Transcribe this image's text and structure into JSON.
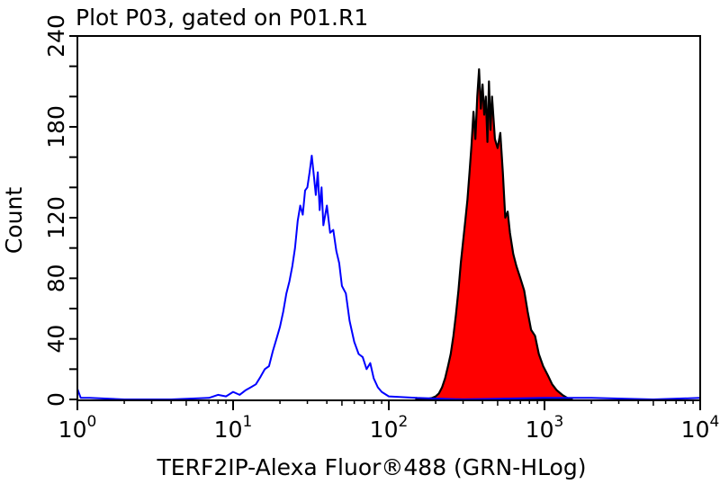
{
  "chart_data": {
    "type": "histogram",
    "title": "Plot P03, gated on P01.R1",
    "xlabel": "TERF2IP-Alexa Fluor®488 (GRN-HLog)",
    "ylabel": "Count",
    "xscale": "log",
    "xlim": [
      1,
      10000
    ],
    "ylim": [
      0,
      240
    ],
    "x_ticks": [
      {
        "base": "10",
        "exp": "0",
        "value": 1
      },
      {
        "base": "10",
        "exp": "1",
        "value": 10
      },
      {
        "base": "10",
        "exp": "2",
        "value": 100
      },
      {
        "base": "10",
        "exp": "3",
        "value": 1000
      },
      {
        "base": "10",
        "exp": "4",
        "value": 10000
      }
    ],
    "y_tick_labels": [
      "0",
      "40",
      "80",
      "120",
      "180",
      "240"
    ],
    "y_minor_step": 20,
    "grid": false,
    "series": [
      {
        "style": "line",
        "color": "#0000ff",
        "x": [
          1,
          1.05,
          1.2,
          2,
          4,
          7,
          8,
          9,
          10,
          11,
          12,
          13,
          14,
          15,
          16,
          17,
          18,
          19,
          20,
          21,
          22,
          23,
          24,
          25,
          26,
          27,
          28,
          29,
          30,
          31,
          32,
          33,
          34,
          35,
          36,
          37,
          38,
          40,
          42,
          44,
          46,
          48,
          50,
          53,
          56,
          60,
          64,
          68,
          72,
          76,
          80,
          85,
          90,
          100,
          150,
          300,
          1000,
          2000,
          5000,
          10000
        ],
        "y": [
          7,
          1,
          1,
          0,
          0,
          1,
          3,
          2,
          5,
          3,
          6,
          8,
          10,
          15,
          20,
          22,
          32,
          40,
          48,
          58,
          70,
          78,
          88,
          100,
          118,
          128,
          122,
          138,
          140,
          150,
          161,
          148,
          135,
          150,
          125,
          140,
          115,
          128,
          110,
          112,
          98,
          90,
          75,
          70,
          52,
          38,
          30,
          28,
          20,
          24,
          14,
          8,
          5,
          2,
          1,
          0,
          1,
          1,
          0,
          1
        ]
      },
      {
        "style": "filled",
        "color": "#ff0000",
        "outline": "#000000",
        "x": [
          150,
          170,
          190,
          200,
          210,
          220,
          230,
          240,
          250,
          260,
          270,
          280,
          290,
          300,
          310,
          320,
          330,
          340,
          350,
          360,
          370,
          380,
          390,
          400,
          410,
          420,
          430,
          440,
          450,
          460,
          480,
          500,
          520,
          540,
          560,
          580,
          600,
          630,
          660,
          700,
          740,
          780,
          820,
          870,
          920,
          980,
          1050,
          1120,
          1200,
          1300,
          1400,
          1500
        ],
        "y": [
          1,
          0,
          1,
          2,
          4,
          8,
          14,
          22,
          30,
          42,
          56,
          72,
          90,
          104,
          118,
          132,
          150,
          168,
          190,
          172,
          200,
          218,
          192,
          208,
          188,
          200,
          170,
          210,
          178,
          200,
          172,
          166,
          176,
          150,
          120,
          124,
          110,
          96,
          88,
          80,
          72,
          58,
          46,
          42,
          30,
          22,
          16,
          10,
          6,
          3,
          1,
          0
        ]
      }
    ]
  }
}
